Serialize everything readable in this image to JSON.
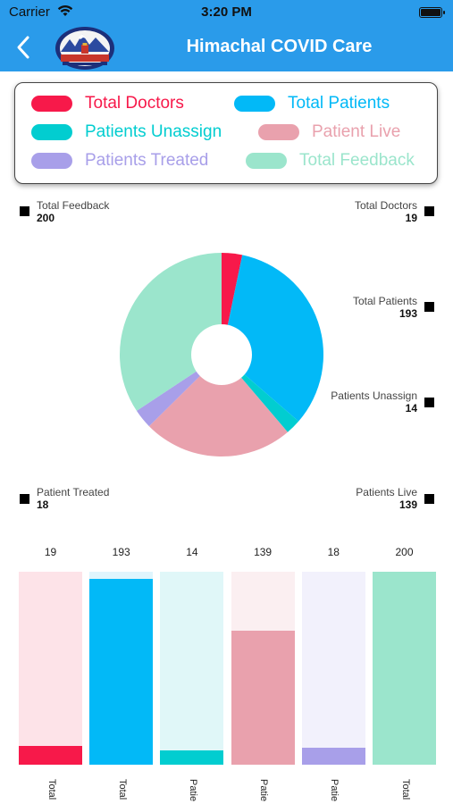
{
  "status_bar": {
    "carrier": "Carrier",
    "time": "3:20 PM"
  },
  "nav": {
    "title": "Himachal COVID Care",
    "logo_text": "हिमाचल प्रदेश सरकार"
  },
  "legend": [
    {
      "label": "Total Doctors",
      "color": "#f7194a"
    },
    {
      "label": "Total Patients",
      "color": "#02b9f7"
    },
    {
      "label": "Patients Unassign",
      "color": "#02cdd0"
    },
    {
      "label": "Patient Live",
      "color": "#e9a1ad"
    },
    {
      "label": "Patients Treated",
      "color": "#a89fe9"
    },
    {
      "label": "Total Feedback",
      "color": "#9be5cc"
    }
  ],
  "pie_labels": {
    "total_feedback": {
      "label": "Total Feedback",
      "value": "200"
    },
    "total_doctors": {
      "label": "Total Doctors",
      "value": "19"
    },
    "total_patients": {
      "label": "Total Patients",
      "value": "193"
    },
    "patients_unassign": {
      "label": "Patients Unassign",
      "value": "14"
    },
    "patient_treated": {
      "label": "Patient Treated",
      "value": "18"
    },
    "patients_live": {
      "label": "Patients Live",
      "value": "139"
    }
  },
  "chart_data": [
    {
      "type": "pie",
      "categories": [
        "Total Doctors",
        "Total Patients",
        "Patients Unassign",
        "Patient Live",
        "Patients Treated",
        "Total Feedback"
      ],
      "values": [
        19,
        193,
        14,
        139,
        18,
        200
      ],
      "colors": [
        "#f7194a",
        "#02b9f7",
        "#02cdd0",
        "#e9a1ad",
        "#a89fe9",
        "#9be5cc"
      ],
      "donut": true
    },
    {
      "type": "bar",
      "categories": [
        "Total",
        "Total",
        "Patie",
        "Patie",
        "Patie",
        "Total"
      ],
      "values": [
        19,
        193,
        14,
        139,
        18,
        200
      ],
      "value_labels": [
        "19",
        "193",
        "14",
        "139",
        "18",
        "200"
      ],
      "colors": [
        "#f7194a",
        "#02b9f7",
        "#02cdd0",
        "#e9a1ad",
        "#a89fe9",
        "#9be5cc"
      ],
      "background_colors": [
        "#fde3e8",
        "#dff5fd",
        "#e0f7f8",
        "#fbeff1",
        "#f2f1fc",
        "#9be5cc"
      ],
      "ylim": [
        0,
        200
      ]
    }
  ]
}
